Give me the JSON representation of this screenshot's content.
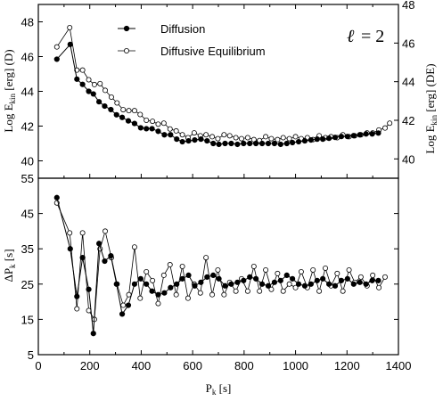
{
  "chart_data": [
    {
      "id": "top",
      "type": "line",
      "x_range": [
        0,
        1400
      ],
      "y_left": {
        "label_base": "Log E",
        "label_sub": "kin",
        "label_unit": " [erg] (D)",
        "range": [
          39,
          49
        ],
        "ticks": [
          40,
          42,
          44,
          46,
          48
        ]
      },
      "y_right": {
        "label_base": "Log E",
        "label_sub": "kin",
        "label_unit": " [erg] (DE)",
        "range": [
          39,
          48
        ],
        "ticks": [
          40,
          42,
          44,
          46,
          48
        ]
      },
      "annotation": {
        "ell": "ℓ",
        "eq": "= 2"
      },
      "series": [
        {
          "name": "Diffusion",
          "axis": "left",
          "marker": "filled",
          "x": [
            72,
            124,
            150,
            172,
            196,
            214,
            236,
            258,
            282,
            304,
            326,
            350,
            374,
            398,
            420,
            442,
            466,
            490,
            514,
            538,
            560,
            584,
            608,
            632,
            656,
            680,
            702,
            726,
            750,
            774,
            798,
            822,
            846,
            870,
            894,
            918,
            942,
            966,
            988,
            1012,
            1036,
            1060,
            1084,
            1106,
            1130,
            1154,
            1178,
            1202,
            1226,
            1250,
            1274,
            1298,
            1322
          ],
          "y": [
            45.85,
            46.7,
            44.7,
            44.4,
            44.0,
            43.85,
            43.4,
            43.15,
            42.95,
            42.65,
            42.5,
            42.3,
            42.15,
            41.9,
            41.85,
            41.85,
            41.7,
            41.5,
            41.5,
            41.25,
            41.1,
            41.15,
            41.2,
            41.25,
            41.15,
            41.0,
            40.95,
            41.0,
            41.0,
            40.95,
            41.0,
            41.0,
            41.0,
            41.0,
            41.0,
            41.0,
            40.95,
            41.0,
            41.05,
            41.1,
            41.15,
            41.2,
            41.25,
            41.25,
            41.3,
            41.35,
            41.4,
            41.4,
            41.45,
            41.5,
            41.55,
            41.55,
            41.6
          ]
        },
        {
          "name": "Diffusive Equilibrium",
          "axis": "right",
          "marker": "open",
          "x": [
            72,
            122,
            150,
            172,
            196,
            218,
            240,
            260,
            284,
            306,
            330,
            352,
            374,
            396,
            420,
            444,
            466,
            488,
            512,
            536,
            560,
            582,
            606,
            630,
            652,
            676,
            698,
            722,
            744,
            768,
            790,
            814,
            838,
            860,
            884,
            906,
            930,
            952,
            976,
            1000,
            1022,
            1046,
            1068,
            1092,
            1116,
            1138,
            1162,
            1184,
            1208,
            1230,
            1254,
            1278,
            1300,
            1324,
            1348,
            1366
          ],
          "y": [
            45.8,
            46.8,
            44.6,
            44.6,
            44.1,
            43.85,
            43.9,
            43.55,
            43.2,
            42.9,
            42.55,
            42.5,
            42.5,
            42.3,
            42.0,
            41.95,
            41.8,
            41.85,
            41.55,
            41.45,
            41.25,
            41.1,
            41.35,
            41.2,
            41.25,
            41.15,
            41.05,
            41.25,
            41.2,
            41.1,
            41.05,
            41.1,
            41.0,
            40.95,
            41.15,
            41.05,
            41.0,
            41.1,
            41.05,
            41.15,
            41.05,
            41.1,
            41.0,
            41.2,
            41.1,
            41.15,
            41.1,
            41.25,
            41.15,
            41.2,
            41.25,
            41.35,
            41.35,
            41.5,
            41.6,
            41.85
          ]
        }
      ]
    },
    {
      "id": "bottom",
      "type": "line",
      "x_range": [
        0,
        1400
      ],
      "x_ticks": [
        0,
        200,
        400,
        600,
        800,
        1000,
        1200,
        1400
      ],
      "x_label_base": "P",
      "x_label_sub": "k",
      "x_label_unit": " [s]",
      "y_left": {
        "label_base": "ΔP",
        "label_sub": "k",
        "label_unit": " [s]",
        "range": [
          5,
          55
        ],
        "ticks": [
          5,
          15,
          25,
          35,
          45,
          55
        ]
      },
      "series": [
        {
          "name": "Diffusion",
          "marker": "filled",
          "x": [
            72,
            124,
            150,
            172,
            196,
            214,
            236,
            258,
            282,
            304,
            326,
            350,
            374,
            398,
            420,
            442,
            466,
            490,
            514,
            538,
            560,
            584,
            608,
            632,
            656,
            680,
            702,
            726,
            750,
            774,
            798,
            822,
            846,
            870,
            894,
            918,
            942,
            966,
            988,
            1012,
            1036,
            1060,
            1084,
            1106,
            1130,
            1154,
            1178,
            1202,
            1226,
            1250,
            1274,
            1298,
            1322
          ],
          "y": [
            49.5,
            35.0,
            21.5,
            32.5,
            23.5,
            11.0,
            36.5,
            31.5,
            33.0,
            25.0,
            16.5,
            19.0,
            25.0,
            26.5,
            25.0,
            23.0,
            22.0,
            22.5,
            24.0,
            25.0,
            26.5,
            27.5,
            24.5,
            25.5,
            27.0,
            27.5,
            26.5,
            24.5,
            25.0,
            25.5,
            26.0,
            27.0,
            26.5,
            25.0,
            24.5,
            25.5,
            26.0,
            27.5,
            26.5,
            25.0,
            24.5,
            25.0,
            26.0,
            26.5,
            25.0,
            24.5,
            26.0,
            26.5,
            25.0,
            25.5,
            25.0,
            26.0,
            26.0
          ]
        },
        {
          "name": "Diffusive Equilibrium",
          "marker": "open",
          "x": [
            72,
            122,
            150,
            172,
            196,
            218,
            240,
            260,
            284,
            306,
            330,
            352,
            374,
            396,
            420,
            444,
            466,
            488,
            512,
            536,
            560,
            582,
            606,
            630,
            652,
            676,
            698,
            722,
            744,
            768,
            790,
            814,
            838,
            860,
            884,
            906,
            930,
            952,
            976,
            1000,
            1022,
            1046,
            1068,
            1092,
            1116,
            1138,
            1162,
            1184,
            1208,
            1230,
            1254,
            1278,
            1300,
            1324,
            1348
          ],
          "y": [
            48.0,
            39.5,
            18.0,
            39.5,
            17.5,
            15.0,
            35.0,
            40.0,
            32.5,
            25.0,
            19.0,
            22.0,
            35.5,
            21.0,
            28.5,
            26.0,
            19.5,
            27.5,
            30.5,
            22.0,
            30.0,
            21.0,
            25.0,
            22.5,
            32.5,
            22.0,
            29.0,
            22.0,
            25.5,
            23.0,
            26.5,
            23.0,
            30.0,
            23.0,
            29.0,
            23.5,
            28.0,
            23.0,
            25.0,
            24.0,
            28.5,
            24.0,
            29.0,
            23.0,
            29.5,
            24.5,
            28.0,
            23.0,
            29.0,
            25.5,
            27.0,
            24.5,
            27.5,
            24.0,
            27.0
          ]
        }
      ]
    }
  ],
  "legend": {
    "items": [
      {
        "label": "Diffusion",
        "marker": "filled"
      },
      {
        "label": "Diffusive Equilibrium",
        "marker": "open"
      }
    ]
  }
}
